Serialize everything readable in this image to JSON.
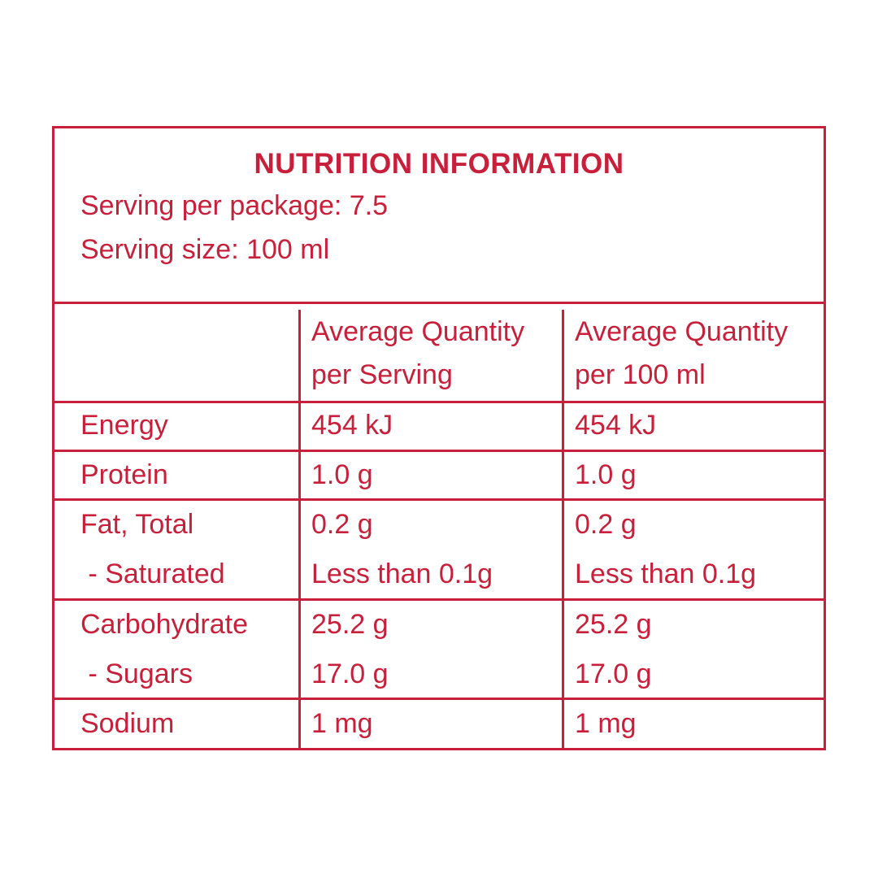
{
  "panel": {
    "title": "NUTRITION INFORMATION",
    "servings_per_package": "Serving per package: 7.5",
    "serving_size": "Serving size: 100 ml"
  },
  "table": {
    "header": {
      "col_a_line1": "Average Quantity",
      "col_a_line2": "per Serving",
      "col_b_line1": "Average Quantity",
      "col_b_line2": "per 100 ml"
    },
    "rows": {
      "energy": {
        "label": "Energy",
        "per_serving": "454 kJ",
        "per_100": "454 kJ"
      },
      "protein": {
        "label": "Protein",
        "per_serving": "1.0 g",
        "per_100": "1.0 g"
      },
      "fat_total": {
        "label": "Fat, Total",
        "per_serving": "0.2 g",
        "per_100": "0.2 g"
      },
      "saturated": {
        "label": " - Saturated",
        "per_serving": "Less than 0.1g",
        "per_100": "Less than 0.1g"
      },
      "carbohydrate": {
        "label": "Carbohydrate",
        "per_serving": "25.2 g",
        "per_100": "25.2 g"
      },
      "sugars": {
        "label": " - Sugars",
        "per_serving": "17.0 g",
        "per_100": "17.0 g"
      },
      "sodium": {
        "label": "Sodium",
        "per_serving": "1 mg",
        "per_100": "1 mg"
      }
    }
  },
  "colors": {
    "accent": "#c8203a",
    "background": "#ffffff"
  }
}
